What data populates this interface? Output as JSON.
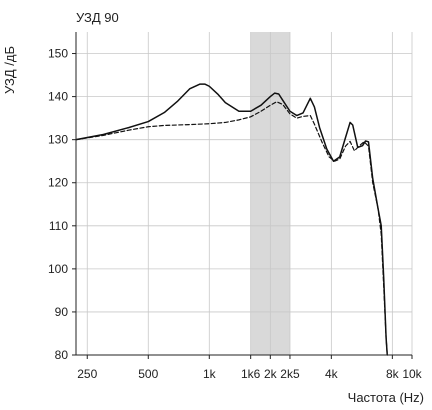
{
  "chart_data": {
    "type": "line",
    "title": "УЗД 90",
    "ylabel": "УЗД /дБ",
    "xlabel": "Частота (Hz)",
    "x_scale": "log",
    "xlim": [
      220,
      10000
    ],
    "ylim": [
      80,
      155
    ],
    "grid": true,
    "x_ticks": [
      {
        "value": 250,
        "label": "250"
      },
      {
        "value": 500,
        "label": "500"
      },
      {
        "value": 1000,
        "label": "1k"
      },
      {
        "value": 1600,
        "label": "1k6"
      },
      {
        "value": 2000,
        "label": "2k"
      },
      {
        "value": 2500,
        "label": "2k5"
      },
      {
        "value": 4000,
        "label": "4k"
      },
      {
        "value": 8000,
        "label": "8k"
      },
      {
        "value": 10000,
        "label": "10k"
      }
    ],
    "y_ticks": [
      {
        "value": 80,
        "label": "80"
      },
      {
        "value": 90,
        "label": "90"
      },
      {
        "value": 100,
        "label": "100"
      },
      {
        "value": 110,
        "label": "110"
      },
      {
        "value": 120,
        "label": "120"
      },
      {
        "value": 130,
        "label": "130"
      },
      {
        "value": 140,
        "label": "140"
      },
      {
        "value": 150,
        "label": "150"
      }
    ],
    "shaded_band": {
      "x_from": 1600,
      "x_to": 2500,
      "color": "#d9d9d9"
    },
    "series": [
      {
        "style": "solid",
        "color": "#111111",
        "points": [
          [
            220,
            130.0
          ],
          [
            300,
            131.2
          ],
          [
            400,
            132.8
          ],
          [
            500,
            134.2
          ],
          [
            600,
            136.3
          ],
          [
            700,
            139.0
          ],
          [
            800,
            141.8
          ],
          [
            900,
            142.9
          ],
          [
            950,
            142.9
          ],
          [
            1000,
            142.4
          ],
          [
            1100,
            140.6
          ],
          [
            1200,
            138.6
          ],
          [
            1400,
            136.6
          ],
          [
            1600,
            136.6
          ],
          [
            1800,
            138.0
          ],
          [
            2000,
            140.0
          ],
          [
            2100,
            140.8
          ],
          [
            2200,
            140.6
          ],
          [
            2300,
            139.2
          ],
          [
            2500,
            136.6
          ],
          [
            2700,
            135.6
          ],
          [
            2900,
            136.2
          ],
          [
            3000,
            137.6
          ],
          [
            3150,
            139.6
          ],
          [
            3300,
            137.6
          ],
          [
            3500,
            132.8
          ],
          [
            3800,
            127.8
          ],
          [
            4100,
            125.0
          ],
          [
            4400,
            126.0
          ],
          [
            4700,
            130.5
          ],
          [
            4950,
            134.0
          ],
          [
            5100,
            133.4
          ],
          [
            5400,
            128.2
          ],
          [
            5700,
            128.6
          ],
          [
            5900,
            129.7
          ],
          [
            6100,
            129.5
          ],
          [
            6400,
            121.0
          ],
          [
            6800,
            114.0
          ],
          [
            7050,
            110.0
          ],
          [
            7250,
            98.0
          ],
          [
            7450,
            84.0
          ],
          [
            7550,
            80.0
          ]
        ]
      },
      {
        "style": "dashed",
        "color": "#111111",
        "points": [
          [
            220,
            130.0
          ],
          [
            300,
            131.0
          ],
          [
            400,
            132.2
          ],
          [
            500,
            133.0
          ],
          [
            600,
            133.3
          ],
          [
            800,
            133.5
          ],
          [
            1000,
            133.7
          ],
          [
            1200,
            134.0
          ],
          [
            1400,
            134.6
          ],
          [
            1600,
            135.3
          ],
          [
            1800,
            136.6
          ],
          [
            2000,
            138.0
          ],
          [
            2150,
            138.8
          ],
          [
            2300,
            138.2
          ],
          [
            2500,
            136.0
          ],
          [
            2700,
            135.0
          ],
          [
            2900,
            135.4
          ],
          [
            3150,
            135.6
          ],
          [
            3300,
            133.6
          ],
          [
            3600,
            129.4
          ],
          [
            3900,
            126.0
          ],
          [
            4150,
            125.0
          ],
          [
            4400,
            125.5
          ],
          [
            4700,
            128.5
          ],
          [
            4950,
            129.6
          ],
          [
            5200,
            127.4
          ],
          [
            5500,
            128.6
          ],
          [
            5800,
            129.5
          ],
          [
            6100,
            128.5
          ],
          [
            6400,
            120.0
          ],
          [
            6800,
            114.0
          ],
          [
            7050,
            108.0
          ],
          [
            7250,
            96.0
          ],
          [
            7450,
            84.0
          ],
          [
            7550,
            80.0
          ]
        ]
      }
    ]
  }
}
